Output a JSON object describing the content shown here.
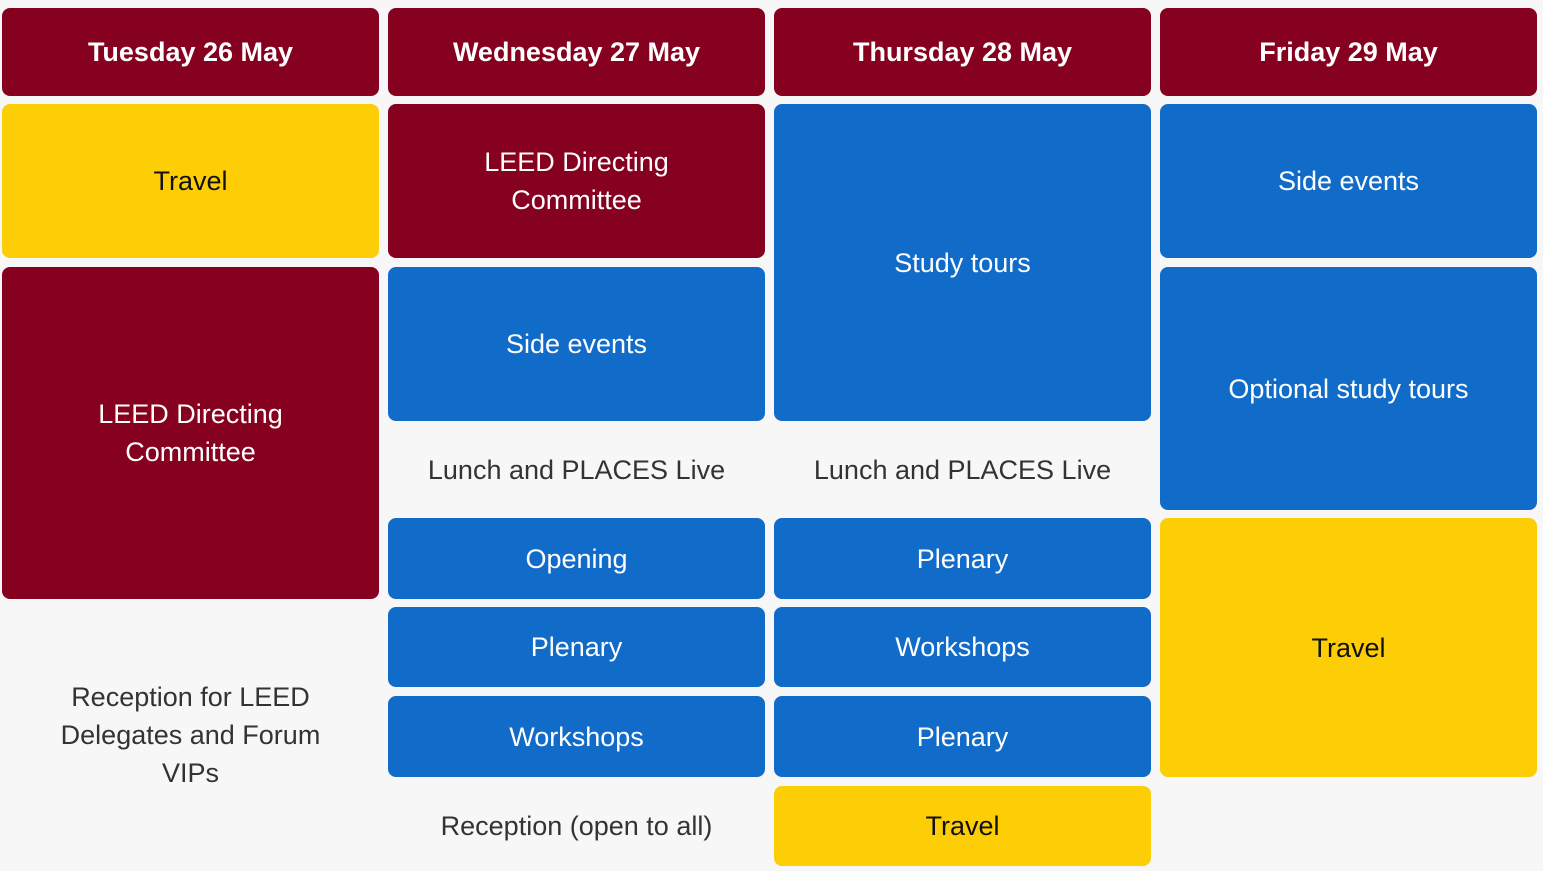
{
  "colors": {
    "maroon": "#86001f",
    "blue": "#116bc8",
    "yellow": "#fdcd05"
  },
  "days": [
    {
      "header": "Tuesday 26 May",
      "events": [
        "Travel",
        "LEED Directing Committee",
        "Reception for LEED Delegates and Forum VIPs"
      ]
    },
    {
      "header": "Wednesday 27 May",
      "events": [
        "LEED Directing Committee",
        "Side events",
        "Lunch and PLACES Live",
        "Opening",
        "Plenary",
        "Workshops",
        "Reception (open to all)"
      ]
    },
    {
      "header": "Thursday 28 May",
      "events": [
        "Study tours",
        "Lunch and PLACES Live",
        "Plenary",
        "Workshops",
        "Plenary",
        "Travel"
      ]
    },
    {
      "header": "Friday 29 May",
      "events": [
        "Side events",
        "Optional study tours",
        "Travel"
      ]
    }
  ]
}
